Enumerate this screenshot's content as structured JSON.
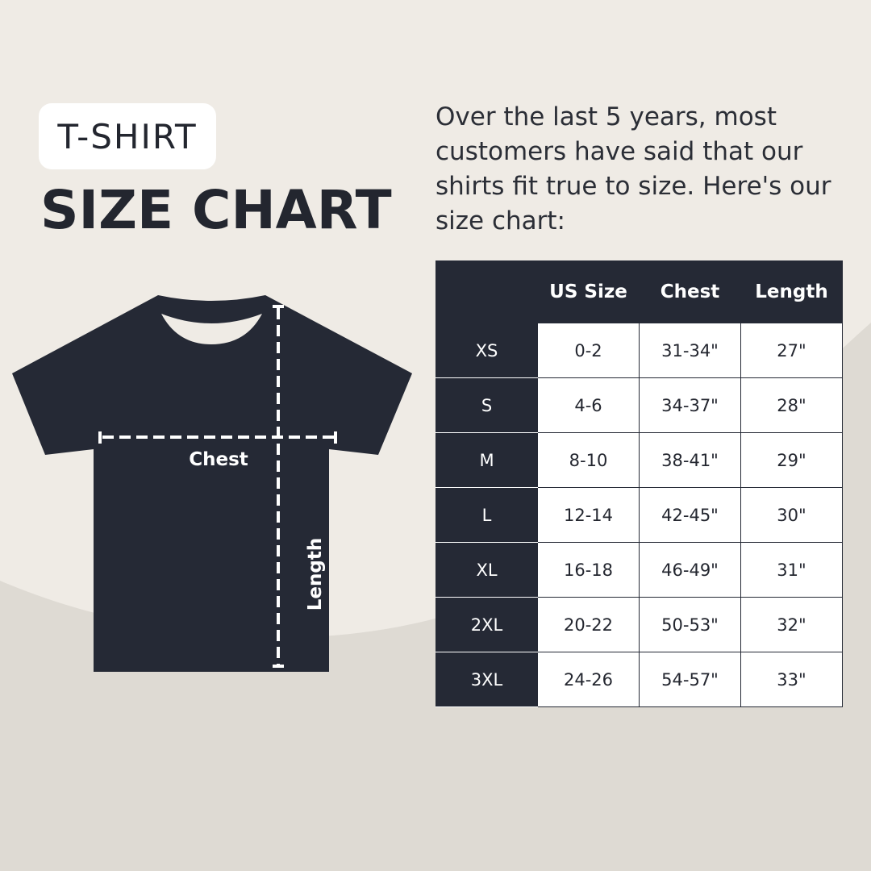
{
  "colors": {
    "dark": "#252935",
    "bg_light": "#efebe5",
    "bg_dark": "#dedad3"
  },
  "header": {
    "badge": "T-SHIRT",
    "title": "SIZE CHART"
  },
  "intro": "Over the last 5 years, most customers have said that our shirts fit true to size. Here's our size chart:",
  "diagram": {
    "chest_label": "Chest",
    "length_label": "Length"
  },
  "table": {
    "columns": [
      "",
      "US Size",
      "Chest",
      "Length"
    ],
    "rows": [
      [
        "XS",
        "0-2",
        "31-34\"",
        "27\""
      ],
      [
        "S",
        "4-6",
        "34-37\"",
        "28\""
      ],
      [
        "M",
        "8-10",
        "38-41\"",
        "29\""
      ],
      [
        "L",
        "12-14",
        "42-45\"",
        "30\""
      ],
      [
        "XL",
        "16-18",
        "46-49\"",
        "31\""
      ],
      [
        "2XL",
        "20-22",
        "50-53\"",
        "32\""
      ],
      [
        "3XL",
        "24-26",
        "54-57\"",
        "33\""
      ]
    ]
  }
}
